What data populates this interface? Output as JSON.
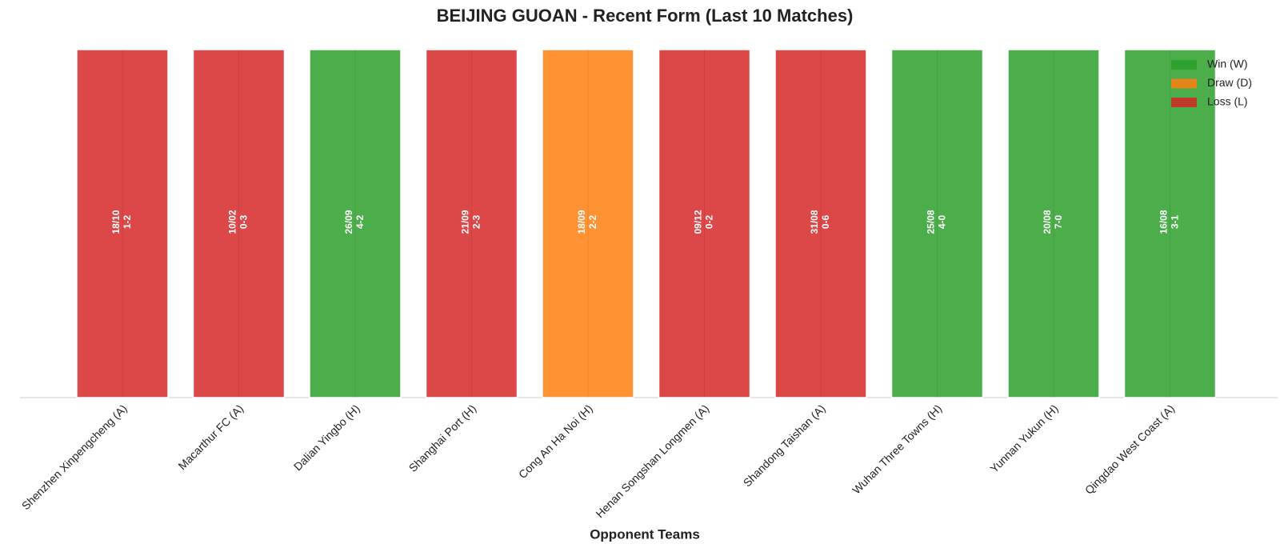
{
  "chart_data": {
    "type": "bar",
    "title": "BEIJING GUOAN - Recent Form (Last 10 Matches)",
    "x_label": "Opponent Teams",
    "categories": [
      "Shenzhen Xinpengcheng (A)",
      "Macarthur FC (A)",
      "Dalian Yingbo (H)",
      "Shanghai Port (H)",
      "Cong An Ha Noi (H)",
      "Henan Songshan Longmen (A)",
      "Shandong Taishan (A)",
      "Wuhan Three Towns (H)",
      "Yunnan Yukun (H)",
      "Qingdao West Coast (A)"
    ],
    "dates": [
      "18/10",
      "10/02",
      "26/09",
      "21/09",
      "18/09",
      "09/12",
      "31/08",
      "25/08",
      "20/08",
      "16/08"
    ],
    "scores": [
      "1-2",
      "0-3",
      "4-2",
      "2-3",
      "2-2",
      "0-2",
      "0-6",
      "4-0",
      "7-0",
      "3-1"
    ],
    "series": [
      {
        "name": "Win (W)",
        "color": "#2ca02c",
        "values": [
          null,
          null,
          1,
          null,
          null,
          null,
          null,
          1,
          1,
          1
        ]
      },
      {
        "name": "Draw (D)",
        "color": "#ff7f0e",
        "values": [
          null,
          null,
          null,
          null,
          1,
          null,
          null,
          null,
          null,
          null
        ]
      },
      {
        "name": "Loss (L)",
        "color": "#d62728",
        "values": [
          1,
          1,
          null,
          1,
          null,
          1,
          1,
          null,
          null,
          null
        ]
      }
    ],
    "ylim": [
      0,
      1
    ],
    "grid": true,
    "legend": "upper right"
  }
}
